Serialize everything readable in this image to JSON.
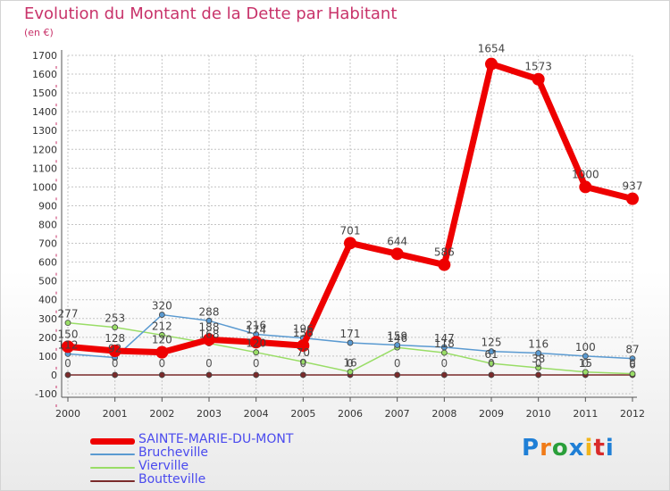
{
  "title": "Evolution du Montant de la Dette par Habitant",
  "subtitle": "(en €)",
  "logo": {
    "text": "Proxiti",
    "colors": [
      "#1f7fd6",
      "#f07b18",
      "#2a9f3a",
      "#1f7fd6",
      "#f2b51b",
      "#d92a2a",
      "#1f7fd6"
    ]
  },
  "chart_data": {
    "type": "line",
    "x": [
      "2000",
      "2001",
      "2002",
      "2003",
      "2004",
      "2005",
      "2006",
      "2007",
      "2008",
      "2009",
      "2010",
      "2011",
      "2012"
    ],
    "yticks": [
      "-100",
      "0",
      "100",
      "200",
      "300",
      "400",
      "500",
      "600",
      "700",
      "800",
      "900",
      "1000",
      "1100",
      "1200",
      "1300",
      "1400",
      "1500",
      "1600",
      "1700"
    ],
    "ylim": [
      -100,
      1700
    ],
    "grid": true,
    "legend_position": "bottom-left",
    "series": [
      {
        "name": "SAINTE-MARIE-DU-MONT",
        "color": "#ee0000",
        "width": 7,
        "values": [
          150,
          128,
          120,
          188,
          174,
          156,
          701,
          644,
          586,
          1654,
          1573,
          1000,
          937
        ],
        "labels": [
          "150",
          "128",
          "120",
          "188",
          "174",
          "156",
          "701",
          "644",
          "586",
          "1654",
          "1573",
          "1000",
          "937"
        ]
      },
      {
        "name": "Brucheville",
        "color": "#5a9ad1",
        "width": 1.5,
        "values": [
          112,
          92,
          320,
          288,
          216,
          196,
          171,
          159,
          147,
          125,
          116,
          100,
          87
        ],
        "labels": [
          "112",
          "92",
          "320",
          "288",
          "216",
          "196",
          "171",
          "159",
          "147",
          "125",
          "116",
          "100",
          "87"
        ]
      },
      {
        "name": "Vierville",
        "color": "#99dd66",
        "width": 1.5,
        "values": [
          277,
          253,
          212,
          168,
          120,
          70,
          16,
          146,
          118,
          61,
          38,
          15,
          6
        ],
        "labels": [
          "277",
          "253",
          "212",
          "168",
          "120",
          "70",
          "16",
          "146",
          "118",
          "61",
          "38",
          "15",
          "6"
        ]
      },
      {
        "name": "Boutteville",
        "color": "#7a2a2a",
        "width": 1.5,
        "values": [
          0,
          0,
          0,
          0,
          0,
          0,
          0,
          0,
          0,
          0,
          0,
          0,
          0
        ],
        "labels": [
          "0",
          "0",
          "0",
          "0",
          "0",
          "0",
          "0",
          "0",
          "0",
          "0",
          "0",
          "0",
          "0"
        ]
      }
    ]
  }
}
